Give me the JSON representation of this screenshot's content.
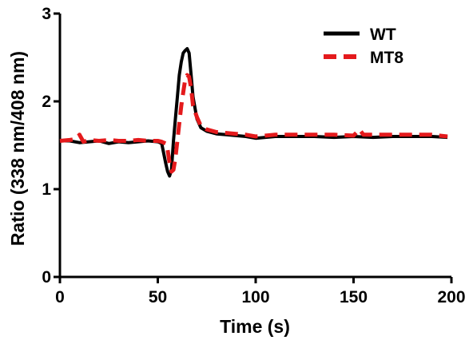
{
  "chart_data": {
    "type": "line",
    "title": "",
    "xlabel": "Time (s)",
    "ylabel": "Ratio (338 nm/408 nm)",
    "xlim": [
      0,
      200
    ],
    "ylim": [
      0,
      3
    ],
    "xticks": [
      0,
      50,
      100,
      150,
      200
    ],
    "yticks": [
      0,
      1,
      2,
      3
    ],
    "xtick_labels": [
      "0",
      "50",
      "100",
      "150",
      "200"
    ],
    "ytick_labels": [
      "0",
      "1",
      "2",
      "3"
    ],
    "grid": false,
    "legend_position": "top-right",
    "series": [
      {
        "name": "WT",
        "color": "#000000",
        "style": "solid",
        "x": [
          0,
          5,
          10,
          15,
          20,
          25,
          30,
          35,
          40,
          45,
          50,
          52,
          54,
          55,
          56,
          57,
          58,
          59,
          60,
          61,
          62,
          63,
          64,
          65,
          66,
          67,
          68,
          70,
          72,
          75,
          80,
          85,
          90,
          95,
          100,
          110,
          120,
          130,
          140,
          150,
          160,
          170,
          180,
          190,
          198
        ],
        "y": [
          1.55,
          1.55,
          1.53,
          1.54,
          1.55,
          1.52,
          1.54,
          1.53,
          1.54,
          1.55,
          1.54,
          1.52,
          1.3,
          1.2,
          1.15,
          1.22,
          1.55,
          1.8,
          2.05,
          2.3,
          2.45,
          2.55,
          2.58,
          2.6,
          2.55,
          2.3,
          2.05,
          1.8,
          1.7,
          1.66,
          1.63,
          1.62,
          1.61,
          1.6,
          1.58,
          1.6,
          1.6,
          1.6,
          1.59,
          1.6,
          1.59,
          1.6,
          1.6,
          1.6,
          1.59
        ]
      },
      {
        "name": "MT8",
        "color": "#e41a1c",
        "style": "dashed",
        "x": [
          0,
          5,
          8,
          10,
          12,
          15,
          20,
          25,
          30,
          35,
          40,
          45,
          50,
          52,
          54,
          55,
          56,
          57,
          58,
          59,
          60,
          61,
          62,
          63,
          64,
          65,
          66,
          67,
          68,
          70,
          72,
          75,
          80,
          85,
          90,
          95,
          100,
          110,
          120,
          130,
          140,
          150,
          153,
          155,
          160,
          170,
          180,
          190,
          198
        ],
        "y": [
          1.55,
          1.56,
          1.57,
          1.62,
          1.54,
          1.56,
          1.55,
          1.56,
          1.55,
          1.55,
          1.56,
          1.55,
          1.55,
          1.54,
          1.52,
          1.45,
          1.3,
          1.2,
          1.22,
          1.35,
          1.55,
          1.75,
          1.95,
          2.1,
          2.25,
          2.3,
          2.28,
          2.15,
          1.95,
          1.82,
          1.72,
          1.68,
          1.65,
          1.64,
          1.63,
          1.62,
          1.6,
          1.62,
          1.62,
          1.62,
          1.62,
          1.61,
          1.68,
          1.62,
          1.62,
          1.62,
          1.62,
          1.62,
          1.6
        ]
      }
    ]
  }
}
